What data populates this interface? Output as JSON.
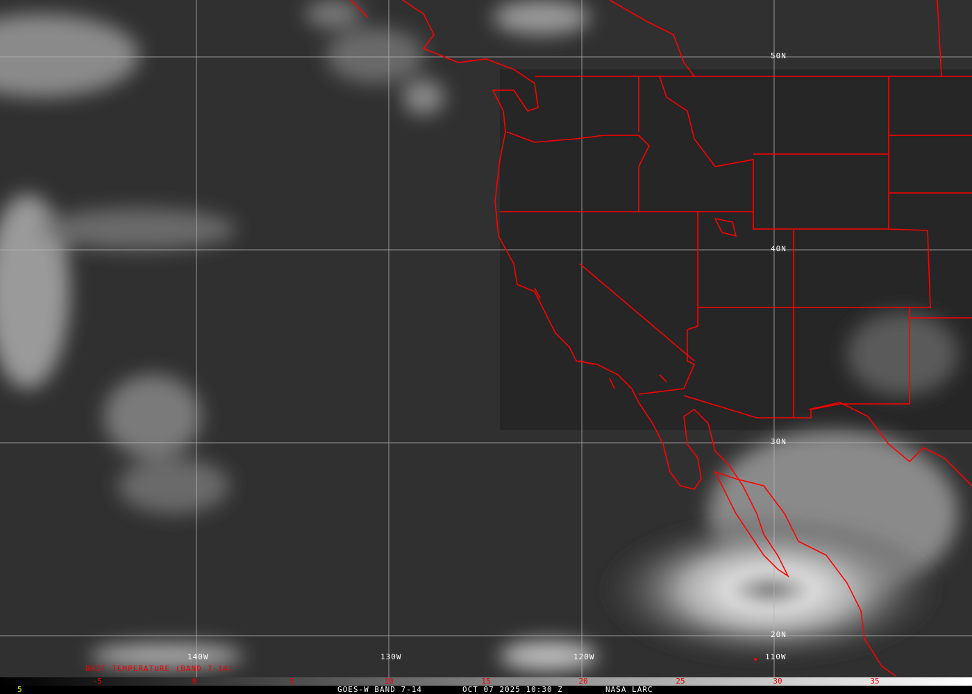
{
  "grid": {
    "longitudes": [
      "140W",
      "130W",
      "120W",
      "110W"
    ],
    "latitudes": [
      "50N",
      "40N",
      "30N",
      "20N"
    ]
  },
  "colorbar": {
    "title": "BRIT TEMPERATURE (BAND 7-14)",
    "ticks": [
      "-5",
      "0",
      "5",
      "10",
      "15",
      "20",
      "25",
      "30",
      "35"
    ],
    "range": [
      -10,
      40
    ]
  },
  "footer": {
    "left_value": "5",
    "product": "GOES-W BAND 7-14",
    "datetime": "OCT 07 2025 10:30 Z",
    "source": "NASA LARC"
  },
  "colors": {
    "borders": "#ff0000",
    "grid": "#b4b4b4",
    "labels": "#ffffff",
    "colorbar_ticks": "#ee0000",
    "footer_value": "#ffff00"
  }
}
